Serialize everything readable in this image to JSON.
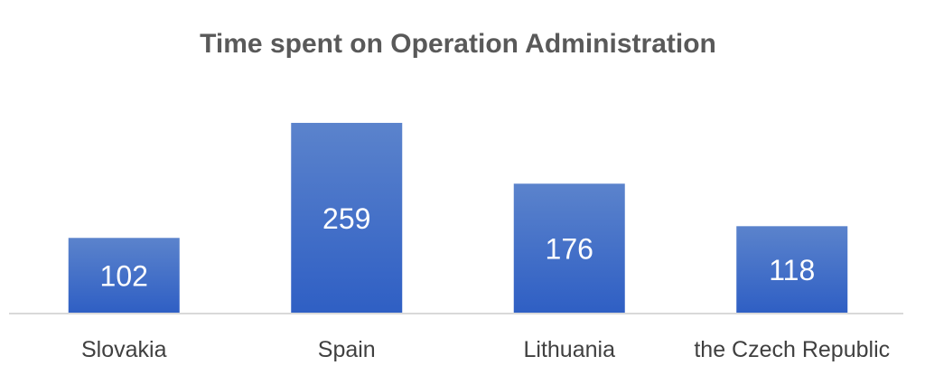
{
  "chart_data": {
    "type": "bar",
    "title": "Time spent on Operation Administration",
    "xlabel": "",
    "ylabel": "",
    "categories": [
      "Slovakia",
      "Spain",
      "Lithuania",
      "the Czech Republic"
    ],
    "values": [
      102,
      259,
      176,
      118
    ],
    "data_labels": true,
    "grid": false,
    "legend": "none",
    "ylim": [
      0,
      270
    ],
    "colors": {
      "bar_top": "#5b83cc",
      "bar_bottom": "#2f5fc4",
      "axis": "#d9d9d9"
    }
  }
}
